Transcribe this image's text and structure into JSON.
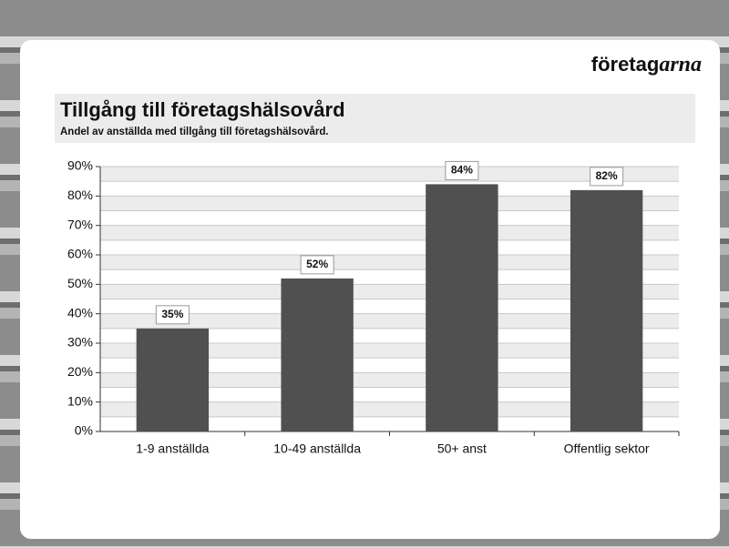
{
  "brand": {
    "main": "företag",
    "accent": "arna"
  },
  "chart_data": {
    "type": "bar",
    "title": "Tillgång till företagshälsovård",
    "subtitle": "Andel av anställda med tillgång till företagshälsovård.",
    "categories": [
      "1-9 anställda",
      "10-49 anställda",
      "50+ anst",
      "Offentlig sektor"
    ],
    "values": [
      35,
      52,
      84,
      82
    ],
    "value_labels": [
      "35%",
      "52%",
      "84%",
      "82%"
    ],
    "color": "#505050",
    "ylim": [
      0,
      90
    ],
    "yticks": [
      {
        "value": 0,
        "label": "0%"
      },
      {
        "value": 10,
        "label": "10%"
      },
      {
        "value": 20,
        "label": "20%"
      },
      {
        "value": 30,
        "label": "30%"
      },
      {
        "value": 40,
        "label": "40%"
      },
      {
        "value": 50,
        "label": "50%"
      },
      {
        "value": 60,
        "label": "60%"
      },
      {
        "value": 70,
        "label": "70%"
      },
      {
        "value": 80,
        "label": "80%"
      },
      {
        "value": 90,
        "label": "90%"
      }
    ],
    "grid": true
  }
}
